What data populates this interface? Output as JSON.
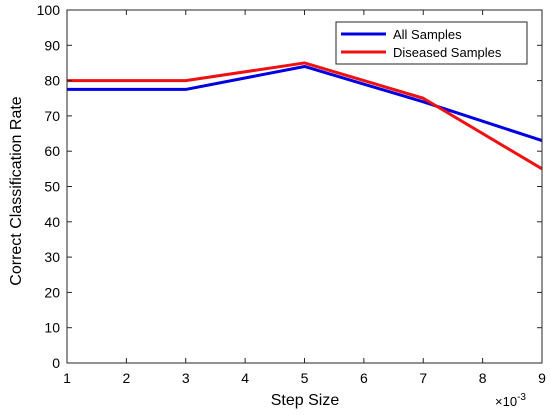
{
  "chart_data": {
    "type": "line",
    "xlabel": "Step Size",
    "ylabel": "Correct Classification Rate",
    "x_multiplier_label": "×10",
    "x_multiplier_exp": "-3",
    "xlim": [
      1,
      9
    ],
    "ylim": [
      0,
      100
    ],
    "xticks": [
      1,
      2,
      3,
      4,
      5,
      6,
      7,
      8,
      9
    ],
    "yticks": [
      0,
      10,
      20,
      30,
      40,
      50,
      60,
      70,
      80,
      90,
      100
    ],
    "legend_position": "top-right",
    "grid": false,
    "series": [
      {
        "name": "All Samples",
        "color": "#0000e0",
        "x": [
          1,
          3,
          5,
          7,
          9
        ],
        "y": [
          77.5,
          77.5,
          84,
          74,
          63
        ]
      },
      {
        "name": "Diseased Samples",
        "color": "#ee1111",
        "x": [
          1,
          3,
          5,
          7,
          9
        ],
        "y": [
          80,
          80,
          85,
          75,
          55
        ]
      }
    ]
  }
}
